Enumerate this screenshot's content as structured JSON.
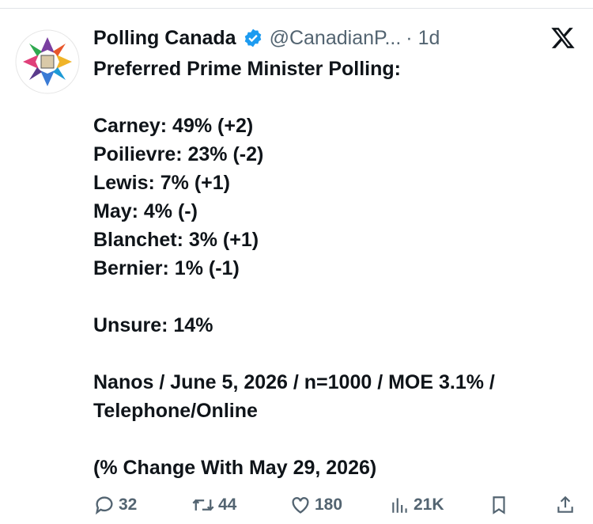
{
  "post": {
    "author": {
      "name": "Polling Canada",
      "handle": "@CanadianP...",
      "time": "· 1d"
    },
    "paragraphs": [
      [
        "Preferred Prime Minister Polling:"
      ],
      [
        "Carney: 49% (+2)",
        "Poilievre: 23% (-2)",
        "Lewis: 7% (+1)",
        "May: 4% (-)",
        "Blanchet: 3% (+1)",
        "Bernier: 1% (-1)"
      ],
      [
        "Unsure: 14%"
      ],
      [
        "Nanos / June 5, 2026 / n=1000 / MOE 3.1% /",
        "Telephone/Online"
      ],
      [
        "(% Change With May 29, 2026)"
      ]
    ],
    "actions": {
      "replies": "32",
      "reposts": "44",
      "likes": "180",
      "views": "21K"
    }
  }
}
